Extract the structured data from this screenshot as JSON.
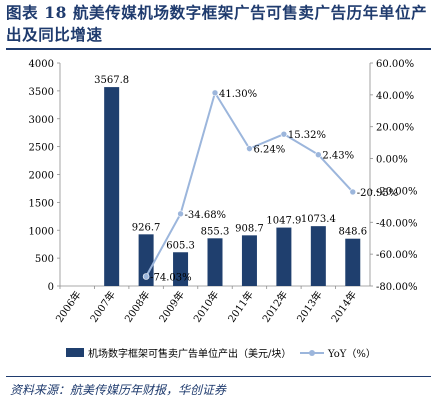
{
  "header": {
    "title": "图表 18   航美传媒机场数字框架广告可售卖广告历年单位产出及同比增速"
  },
  "footer": {
    "source": "资料来源：航美传媒历年财报，华创证券"
  },
  "chart_data": {
    "type": "bar+line",
    "categories": [
      "2006年",
      "2007年",
      "2008年",
      "2009年",
      "2010年",
      "2011年",
      "2012年",
      "2013年",
      "2014年"
    ],
    "series": [
      {
        "name": "机场数字框架可售卖广告单位产出（美元/块）",
        "type": "bar",
        "axis": "left",
        "color": "#1f3f6e",
        "values": [
          null,
          3567.8,
          926.7,
          605.3,
          855.3,
          908.7,
          1047.9,
          1073.4,
          848.6
        ],
        "labels": [
          "",
          "3567.8",
          "926.7",
          "605.3",
          "855.3",
          "908.7",
          "1047.9",
          "1073.4",
          "848.6"
        ]
      },
      {
        "name": "YoY（%）",
        "type": "line",
        "axis": "right",
        "color": "#9cb6dc",
        "values": [
          null,
          null,
          -74.03,
          -34.68,
          41.3,
          6.24,
          15.32,
          2.43,
          -20.95
        ],
        "labels": [
          "",
          "",
          "-74.03%",
          "-34.68%",
          "41.30%",
          "6.24%",
          "15.32%",
          "2.43%",
          "-20.95%"
        ]
      }
    ],
    "y_left": {
      "min": 0,
      "max": 4000,
      "step": 500,
      "ticks": [
        "0",
        "500",
        "1000",
        "1500",
        "2000",
        "2500",
        "3000",
        "3500",
        "4000"
      ]
    },
    "y_right": {
      "min": -80,
      "max": 60,
      "step": 20,
      "ticks": [
        "-80.00%",
        "-60.00%",
        "-40.00%",
        "-20.00%",
        "0.00%",
        "20.00%",
        "40.00%",
        "60.00%"
      ]
    },
    "legend": {
      "position": "bottom",
      "bar_label": "机场数字框架可售卖广告单位产出（美元/块）",
      "line_label": "YoY（%）"
    },
    "grid": false
  }
}
